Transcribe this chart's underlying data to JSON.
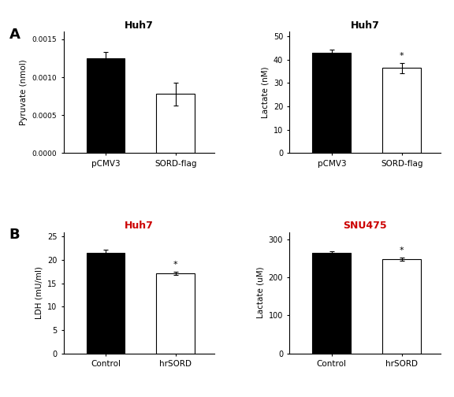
{
  "panel_A_left": {
    "title": "Huh7",
    "title_color": "black",
    "ylabel": "Pyruvate (nmol)",
    "categories": [
      "pCMV3",
      "SORD-flag"
    ],
    "values": [
      0.00125,
      0.00078
    ],
    "errors": [
      8e-05,
      0.00015
    ],
    "colors": [
      "black",
      "white"
    ],
    "ylim": [
      0,
      0.0016
    ],
    "yticks": [
      0.0,
      0.0005,
      0.001,
      0.0015
    ],
    "ytick_labels": [
      "0.0000",
      "0.0005",
      "0.0010",
      "0.0015"
    ],
    "significance": [
      null,
      null
    ]
  },
  "panel_A_right": {
    "title": "Huh7",
    "title_color": "black",
    "ylabel": "Lactate (nM)",
    "categories": [
      "pCMV3",
      "SORD-flag"
    ],
    "values": [
      43.0,
      36.5
    ],
    "errors": [
      1.2,
      2.2
    ],
    "colors": [
      "black",
      "white"
    ],
    "ylim": [
      0,
      52
    ],
    "yticks": [
      0,
      10,
      20,
      30,
      40,
      50
    ],
    "ytick_labels": [
      "0",
      "10",
      "20",
      "30",
      "40",
      "50"
    ],
    "significance": [
      null,
      "*"
    ]
  },
  "panel_B_left": {
    "title": "Huh7",
    "title_color": "#cc0000",
    "ylabel": "LDH (mU/ml)",
    "categories": [
      "Control",
      "hrSORD"
    ],
    "values": [
      21.5,
      17.2
    ],
    "errors": [
      0.7,
      0.35
    ],
    "colors": [
      "black",
      "white"
    ],
    "ylim": [
      0,
      26
    ],
    "yticks": [
      0,
      5,
      10,
      15,
      20,
      25
    ],
    "ytick_labels": [
      "0",
      "5",
      "10",
      "15",
      "20",
      "25"
    ],
    "significance": [
      null,
      "*"
    ]
  },
  "panel_B_right": {
    "title": "SNU475",
    "title_color": "#cc0000",
    "ylabel": "Lactate (uM)",
    "categories": [
      "Control",
      "hrSORD"
    ],
    "values": [
      265,
      248
    ],
    "errors": [
      5,
      4
    ],
    "colors": [
      "black",
      "white"
    ],
    "ylim": [
      0,
      320
    ],
    "yticks": [
      0,
      100,
      200,
      300
    ],
    "ytick_labels": [
      "0",
      "100",
      "200",
      "300"
    ],
    "significance": [
      null,
      "*"
    ]
  },
  "label_A": "A",
  "label_B": "B",
  "background_color": "#ffffff",
  "fig_width": 5.76,
  "fig_height": 5.04,
  "dpi": 100
}
